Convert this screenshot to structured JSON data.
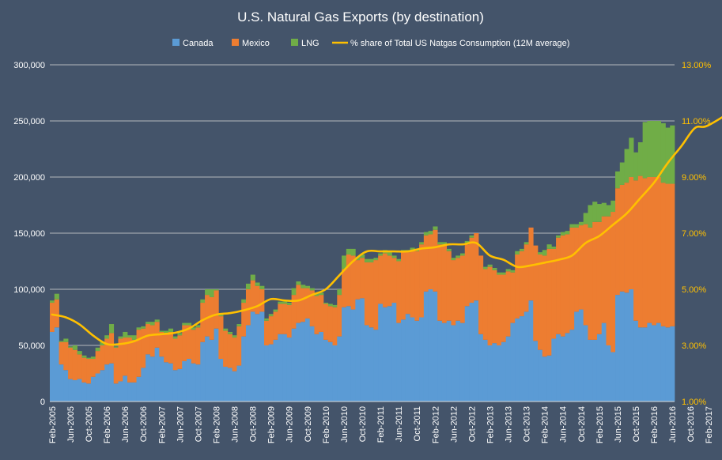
{
  "chart_data": {
    "type": "bar",
    "title": "U.S. Natural Gas Exports (by destination)",
    "stacked": true,
    "legend_position": "top",
    "grid": true,
    "colors": {
      "background": "#44546a",
      "canada": "#5b9bd5",
      "mexico": "#ed7d31",
      "lng": "#70ad47",
      "share_line": "#ffc000",
      "text": "#ffffff",
      "gridline": "#d9d9d9"
    },
    "legend": {
      "canada": "Canada",
      "mexico": "Mexico",
      "lng": "LNG",
      "share": "% share of Total US Natgas Consumption (12M average)"
    },
    "y_left": {
      "ylim": [
        0,
        300000
      ],
      "ticks": [
        0,
        50000,
        100000,
        150000,
        200000,
        250000,
        300000
      ],
      "tick_labels": [
        "0",
        "50,000",
        "100,000",
        "150,000",
        "200,000",
        "250,000",
        "300,000"
      ]
    },
    "y_right": {
      "ylim": [
        0.01,
        0.13
      ],
      "ticks": [
        0.01,
        0.03,
        0.05,
        0.07,
        0.09,
        0.11,
        0.13
      ],
      "tick_labels": [
        "1.00%",
        "3.00%",
        "5.00%",
        "7.00%",
        "9.00%",
        "11.00%",
        "13.00%"
      ]
    },
    "x": {
      "start": "Feb-2005",
      "end": "Oct-2017",
      "tick_labels": [
        "Feb-2005",
        "Jun-2005",
        "Oct-2005",
        "Feb-2006",
        "Jun-2006",
        "Oct-2006",
        "Feb-2007",
        "Jun-2007",
        "Oct-2007",
        "Feb-2008",
        "Jun-2008",
        "Oct-2008",
        "Feb-2009",
        "Jun-2009",
        "Oct-2009",
        "Feb-2010",
        "Jun-2010",
        "Oct-2010",
        "Feb-2011",
        "Jun-2011",
        "Oct-2011",
        "Feb-2012",
        "Jun-2012",
        "Oct-2012",
        "Feb-2013",
        "Jun-2013",
        "Oct-2013",
        "Feb-2014",
        "Jun-2014",
        "Oct-2014",
        "Feb-2015",
        "Jun-2015",
        "Oct-2015",
        "Feb-2016",
        "Jun-2016",
        "Oct-2016",
        "Feb-2017",
        "Jun-2017",
        "Oct-2017"
      ]
    },
    "series": [
      {
        "name": "Canada",
        "key": "canada",
        "values": [
          62000,
          66000,
          33000,
          28000,
          20000,
          19000,
          20000,
          17000,
          16000,
          22000,
          25000,
          28000,
          33000,
          34000,
          16000,
          18000,
          23000,
          17000,
          17000,
          22000,
          30000,
          42000,
          40000,
          48000,
          40000,
          35000,
          34000,
          28000,
          29000,
          36000,
          38000,
          34000,
          33000,
          53000,
          58000,
          55000,
          65000,
          38000,
          31000,
          30000,
          27000,
          32000,
          58000,
          68000,
          80000,
          78000,
          80000,
          50000,
          51000,
          55000,
          60000,
          60000,
          57000,
          65000,
          70000,
          71000,
          74000,
          67000,
          60000,
          62000,
          55000,
          53000,
          50000,
          58000,
          84000,
          85000,
          82000,
          91000,
          92000,
          68000,
          66000,
          64000,
          87000,
          84000,
          85000,
          88000,
          70000,
          73000,
          78000,
          75000,
          72000,
          75000,
          98000,
          100000,
          98000,
          72000,
          70000,
          72000,
          68000,
          72000,
          70000,
          85000,
          88000,
          90000,
          60000,
          55000,
          50000,
          52000,
          50000,
          53000,
          58000,
          70000,
          74000,
          76000,
          80000,
          90000,
          54000,
          46000,
          40000,
          41000,
          56000,
          60000,
          58000,
          61000,
          64000,
          80000,
          82000,
          68000,
          55000,
          55000,
          60000,
          70000,
          50000,
          44000,
          95000,
          98000,
          97000,
          100000,
          72000,
          66000,
          66000,
          70000,
          68000,
          70000,
          67000,
          66000,
          67000
        ],
        "note": "monthly values in MMcf, estimated"
      },
      {
        "name": "Mexico",
        "key": "mexico",
        "values": [
          26000,
          25000,
          20000,
          25000,
          28000,
          27000,
          22000,
          22000,
          22000,
          16000,
          20000,
          22000,
          23000,
          27000,
          32000,
          38000,
          34000,
          40000,
          38000,
          42000,
          35000,
          27000,
          28000,
          23000,
          22000,
          25000,
          28000,
          28000,
          30000,
          32000,
          30000,
          30000,
          33000,
          35000,
          37000,
          38000,
          34000,
          38000,
          32000,
          30000,
          30000,
          35000,
          30000,
          32000,
          28000,
          25000,
          20000,
          22000,
          25000,
          25000,
          27000,
          27000,
          29000,
          30000,
          34000,
          30000,
          27000,
          32000,
          34000,
          33000,
          32000,
          32000,
          34000,
          37000,
          34000,
          46000,
          48000,
          35000,
          36000,
          56000,
          58000,
          62000,
          43000,
          48000,
          45000,
          40000,
          55000,
          60000,
          55000,
          60000,
          62000,
          65000,
          50000,
          49000,
          55000,
          68000,
          70000,
          62000,
          58000,
          56000,
          60000,
          55000,
          58000,
          60000,
          70000,
          63000,
          70000,
          65000,
          63000,
          60000,
          58000,
          45000,
          57000,
          58000,
          60000,
          65000,
          85000,
          85000,
          90000,
          95000,
          80000,
          86000,
          90000,
          88000,
          91000,
          75000,
          75000,
          90000,
          100000,
          105000,
          100000,
          95000,
          115000,
          125000,
          95000,
          95000,
          98000,
          100000,
          125000,
          135000,
          133000,
          130000,
          132000,
          130000,
          128000,
          128000,
          127000
        ],
        "note": "monthly values in MMcf, estimated"
      },
      {
        "name": "LNG",
        "key": "lng",
        "values": [
          2000,
          5000,
          1000,
          3000,
          1000,
          4000,
          3000,
          2000,
          1000,
          2000,
          3000,
          3000,
          3000,
          8000,
          1000,
          2000,
          5000,
          2000,
          4000,
          2000,
          2000,
          2000,
          3000,
          2000,
          1000,
          3000,
          3000,
          2000,
          2000,
          2000,
          2000,
          2000,
          2000,
          3000,
          5000,
          7000,
          1000,
          2000,
          2000,
          2000,
          2000,
          2000,
          3000,
          5000,
          5000,
          3000,
          3000,
          2000,
          2000,
          2000,
          2000,
          2000,
          2000,
          6000,
          3000,
          3000,
          2000,
          2000,
          2000,
          2000,
          1000,
          2000,
          2000,
          5000,
          12000,
          5000,
          6000,
          3000,
          3000,
          3000,
          3000,
          2000,
          2000,
          3000,
          3000,
          2000,
          2000,
          2000,
          2000,
          2000,
          2000,
          2000,
          3000,
          3000,
          3000,
          2000,
          2000,
          2000,
          2000,
          2000,
          2000,
          3000,
          2000,
          0,
          0,
          2000,
          2000,
          2000,
          2000,
          2000,
          2000,
          2000,
          3000,
          2000,
          2000,
          0,
          0,
          2000,
          5000,
          4000,
          2000,
          2000,
          3000,
          3000,
          3000,
          3000,
          3000,
          10000,
          20000,
          18000,
          16000,
          12000,
          10000,
          10000,
          15000,
          20000,
          30000,
          35000,
          25000,
          30000,
          50000,
          50000,
          50000,
          50000,
          53000,
          50000,
          52000,
          58000,
          81000
        ],
        "note": "monthly values in MMcf, estimated"
      },
      {
        "name": "% share of Total US Natgas Consumption (12M average)",
        "key": "share",
        "type": "line",
        "axis": "right",
        "x_index": [
          0,
          3,
          6,
          9,
          12,
          15,
          18,
          21,
          24,
          27,
          30,
          33,
          36,
          39,
          42,
          45,
          48,
          51,
          54,
          57,
          60,
          63,
          66,
          69,
          72,
          75,
          78,
          81,
          84,
          87,
          90,
          93,
          96,
          99,
          102,
          105,
          108,
          111,
          114,
          117,
          120,
          123,
          126,
          129,
          132,
          135,
          138,
          141,
          144,
          152
        ],
        "values": [
          0.041,
          0.04,
          0.0375,
          0.0335,
          0.0305,
          0.0305,
          0.0315,
          0.0335,
          0.034,
          0.0345,
          0.036,
          0.039,
          0.041,
          0.0415,
          0.0425,
          0.044,
          0.0465,
          0.046,
          0.046,
          0.048,
          0.05,
          0.055,
          0.06,
          0.0635,
          0.0635,
          0.0635,
          0.0635,
          0.0645,
          0.065,
          0.066,
          0.066,
          0.0665,
          0.062,
          0.0605,
          0.058,
          0.0585,
          0.0595,
          0.0605,
          0.062,
          0.0665,
          0.069,
          0.073,
          0.077,
          0.0825,
          0.088,
          0.095,
          0.101,
          0.1075,
          0.1085,
          0.1165
        ],
        "note": "12-month average share, estimated"
      }
    ]
  }
}
